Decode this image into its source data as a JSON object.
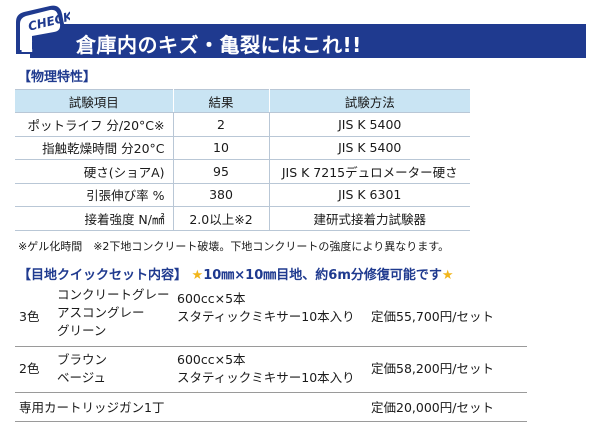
{
  "colors": {
    "banner": "#1f3a8f",
    "table_header": "#c9e4f3",
    "star": "#f2b61c"
  },
  "banner": {
    "badge_text": "CHECK",
    "badge_number": "2",
    "title": "倉庫内のキズ・亀裂にはこれ!!"
  },
  "properties": {
    "heading": "【物理特性】",
    "headers": [
      "試験項目",
      "結果",
      "試験方法"
    ],
    "rows": [
      [
        "ポットライフ 分/20°C※",
        "2",
        "JIS K 5400"
      ],
      [
        "指触乾燥時間 分20°C",
        "10",
        "JIS K 5400"
      ],
      [
        "硬さ(ショアA)",
        "95",
        "JIS K 7215デュロメーター硬さ"
      ],
      [
        "引張伸び率 %",
        "380",
        "JIS K 6301"
      ],
      [
        "接着強度 N/㎟",
        "2.0以上※2",
        "建研式接着力試験器"
      ]
    ],
    "note": "※ゲル化時間　※2下地コンクリート破壊。下地コンクリートの強度により異なります。"
  },
  "quick_set": {
    "heading": "【目地クイックセット内容】",
    "star": "★",
    "highlight": "10㎜×10㎜目地、約6m分修復可能です",
    "rows": [
      {
        "count": "3色",
        "colors": [
          "コンクリートグレー",
          "アスコングレー",
          "グリーン"
        ],
        "spec": [
          "600cc×5本",
          "スタティックミキサー10本入り"
        ],
        "price": "定価55,700円/セット"
      },
      {
        "count": "2色",
        "colors": [
          "ブラウン",
          "ベージュ"
        ],
        "spec": [
          "600cc×5本",
          "スタティックミキサー10本入り"
        ],
        "price": "定価58,200円/セット"
      }
    ],
    "gun": {
      "item": "専用カートリッジガン1丁",
      "price": "定価20,000円/セット"
    }
  }
}
